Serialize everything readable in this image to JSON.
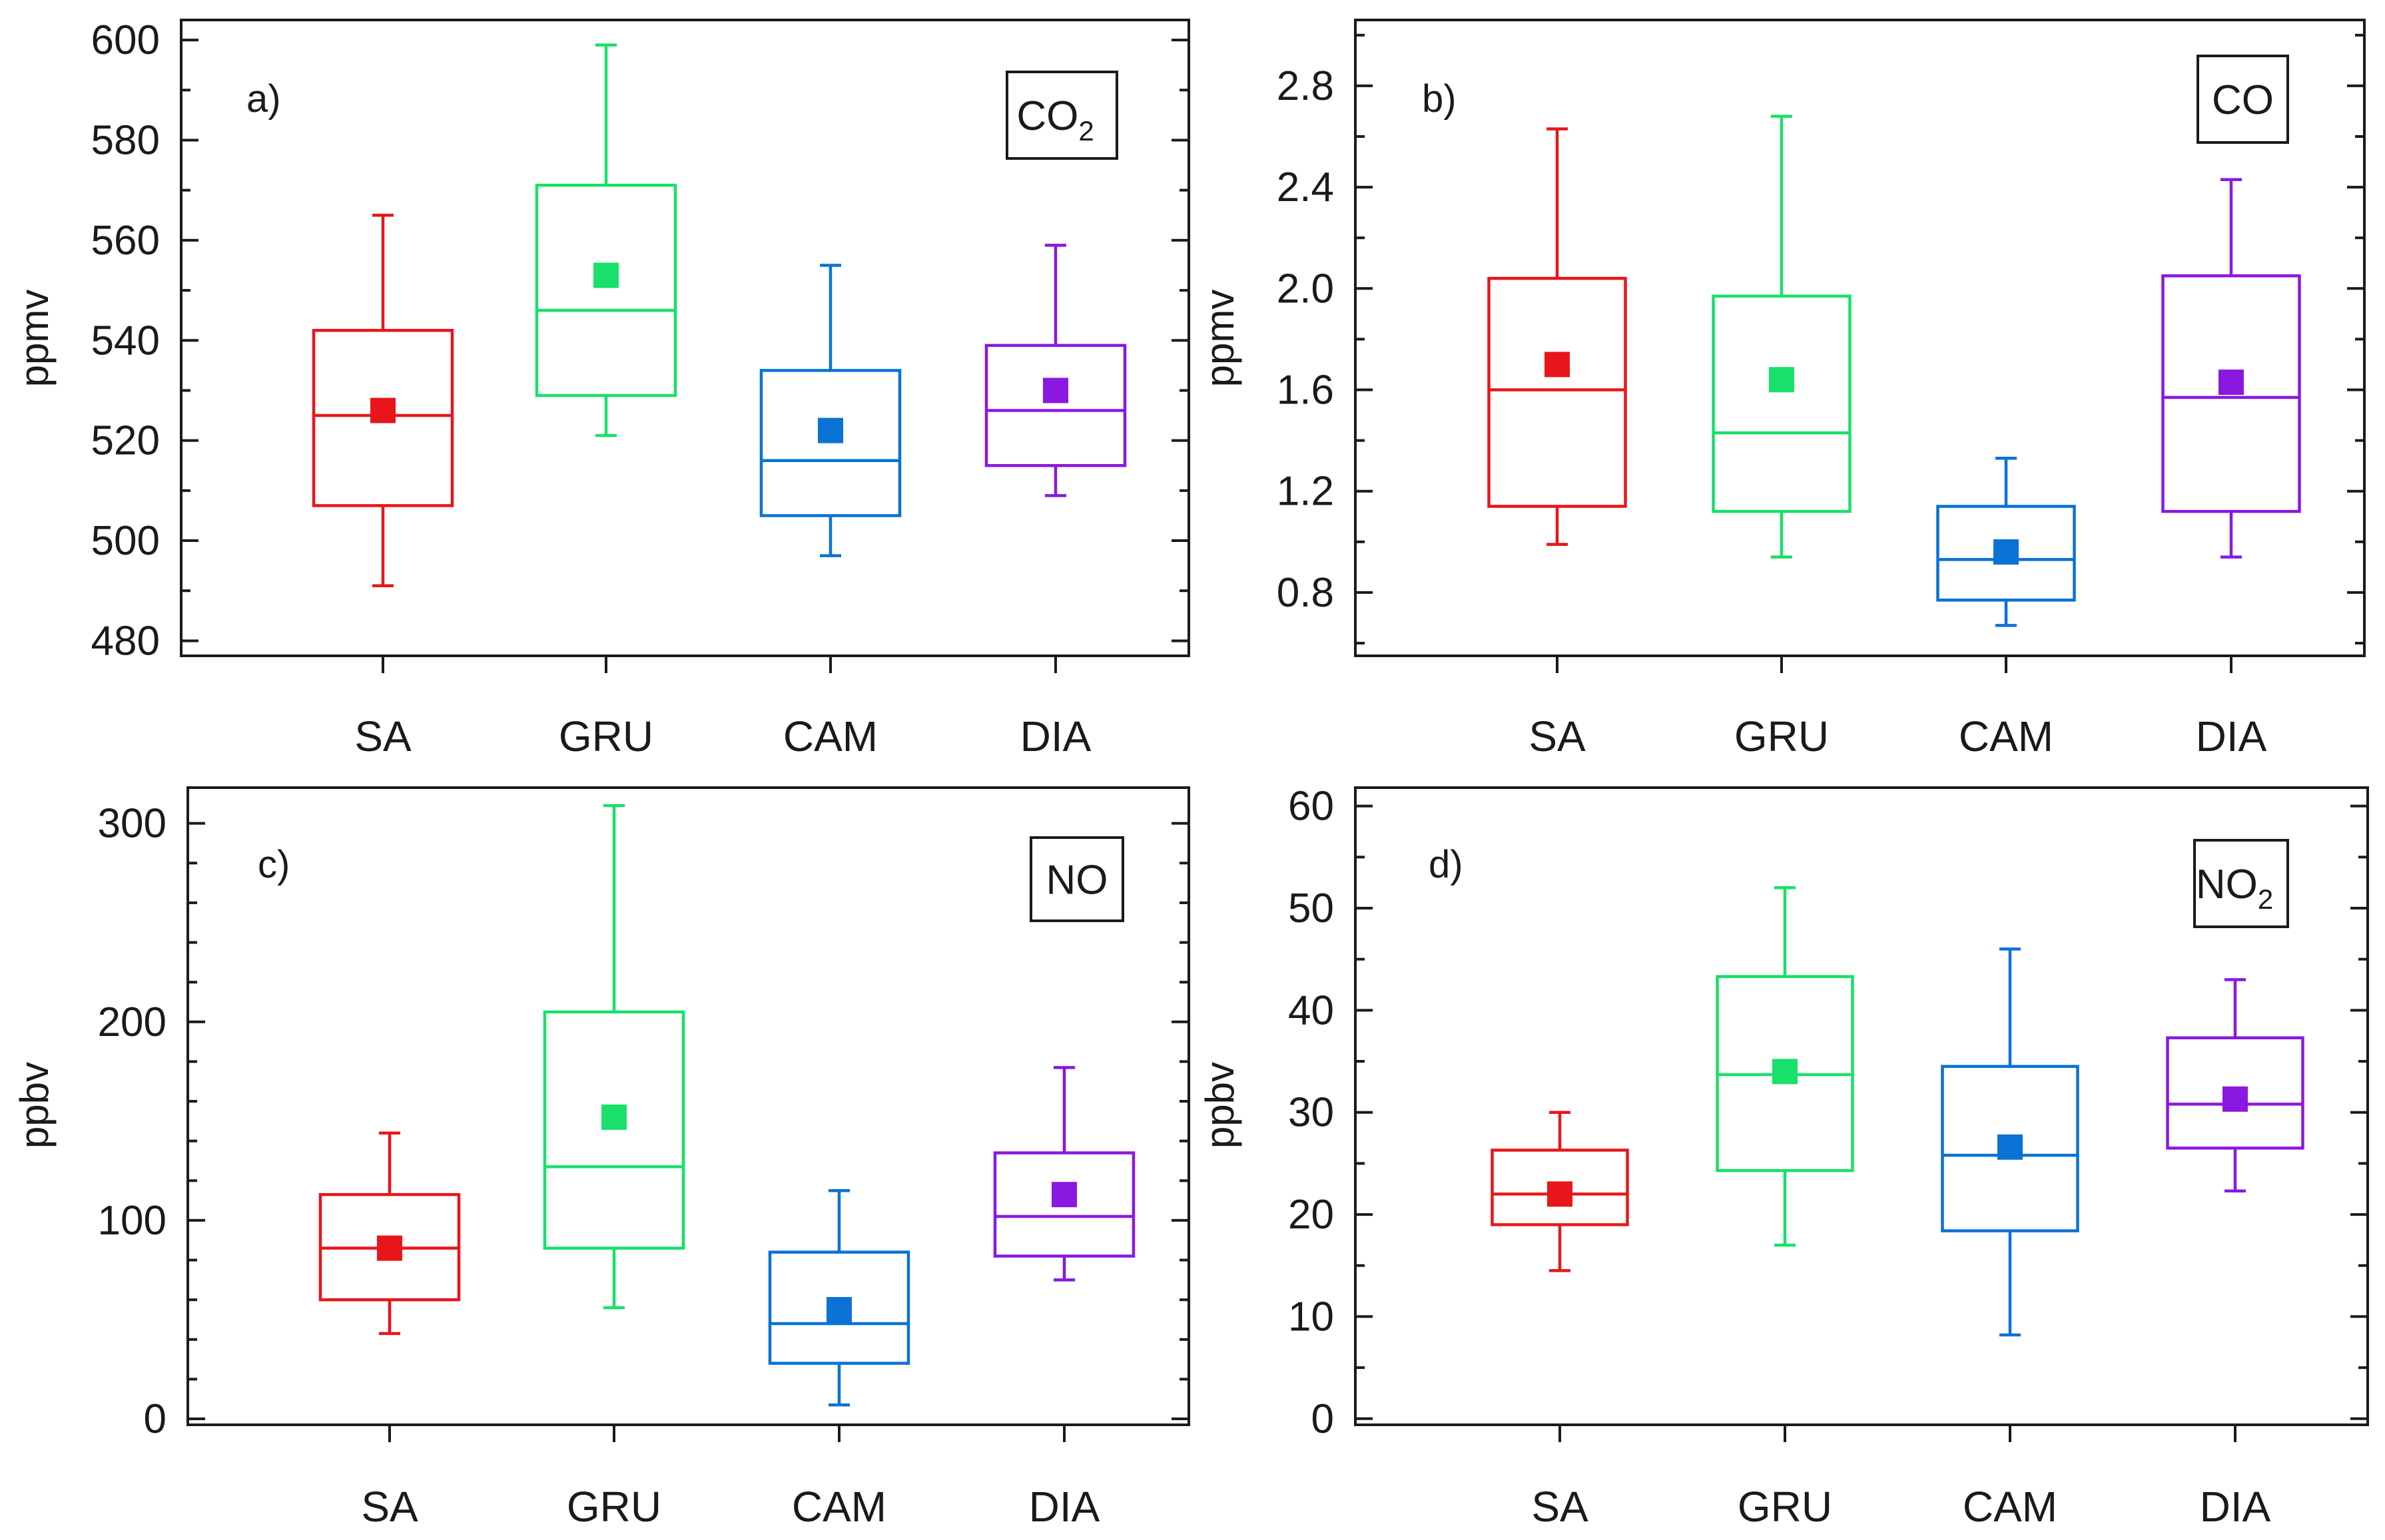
{
  "colors": {
    "SA": "#e8161b",
    "GRU": "#18e06a",
    "CAM": "#0a72d4",
    "DIA": "#8a18e0"
  },
  "chart_data": [
    {
      "type": "box",
      "panel_label": "a)",
      "species": "CO",
      "species_subscript": "2",
      "ylabel": "ppmv",
      "categories": [
        "SA",
        "GRU",
        "CAM",
        "DIA"
      ],
      "ylim": [
        477,
        604
      ],
      "yticks": [
        480,
        500,
        520,
        540,
        560,
        580,
        600
      ],
      "yminor_step": 10,
      "tick_labels": [
        "480",
        "500",
        "520",
        "540",
        "560",
        "580",
        "600"
      ],
      "boxes": [
        {
          "category": "SA",
          "whisker_low": 491,
          "q1": 507,
          "median": 525,
          "q3": 542,
          "whisker_high": 565,
          "mean": 526
        },
        {
          "category": "GRU",
          "whisker_low": 521,
          "q1": 529,
          "median": 546,
          "q3": 571,
          "whisker_high": 599,
          "mean": 553
        },
        {
          "category": "CAM",
          "whisker_low": 497,
          "q1": 505,
          "median": 516,
          "q3": 534,
          "whisker_high": 555,
          "mean": 522
        },
        {
          "category": "DIA",
          "whisker_low": 509,
          "q1": 515,
          "median": 526,
          "q3": 539,
          "whisker_high": 559,
          "mean": 530
        }
      ]
    },
    {
      "type": "box",
      "panel_label": "b)",
      "species": "CO",
      "species_subscript": "",
      "ylabel": "ppmv",
      "categories": [
        "SA",
        "GRU",
        "CAM",
        "DIA"
      ],
      "ylim": [
        0.55,
        3.06
      ],
      "yticks": [
        0.8,
        1.2,
        1.6,
        2.0,
        2.4,
        2.8
      ],
      "yminor_step": 0.2,
      "tick_labels": [
        "0.8",
        "1.2",
        "1.6",
        "2.0",
        "2.4",
        "2.8"
      ],
      "boxes": [
        {
          "category": "SA",
          "whisker_low": 0.99,
          "q1": 1.14,
          "median": 1.6,
          "q3": 2.04,
          "whisker_high": 2.63,
          "mean": 1.7
        },
        {
          "category": "GRU",
          "whisker_low": 0.94,
          "q1": 1.12,
          "median": 1.43,
          "q3": 1.97,
          "whisker_high": 2.68,
          "mean": 1.64
        },
        {
          "category": "CAM",
          "whisker_low": 0.67,
          "q1": 0.77,
          "median": 0.93,
          "q3": 1.14,
          "whisker_high": 1.33,
          "mean": 0.96
        },
        {
          "category": "DIA",
          "whisker_low": 0.94,
          "q1": 1.12,
          "median": 1.57,
          "q3": 2.05,
          "whisker_high": 2.43,
          "mean": 1.63
        }
      ]
    },
    {
      "type": "box",
      "panel_label": "c)",
      "species": "NO",
      "species_subscript": "",
      "ylabel": "ppbv",
      "categories": [
        "SA",
        "GRU",
        "CAM",
        "DIA"
      ],
      "ylim": [
        -3,
        318
      ],
      "yticks": [
        0,
        100,
        200,
        300
      ],
      "yminor_step": 20,
      "tick_labels": [
        "0",
        "100",
        "200",
        "300"
      ],
      "boxes": [
        {
          "category": "SA",
          "whisker_low": 43,
          "q1": 60,
          "median": 86,
          "q3": 113,
          "whisker_high": 144,
          "mean": 86
        },
        {
          "category": "GRU",
          "whisker_low": 56,
          "q1": 86,
          "median": 127,
          "q3": 205,
          "whisker_high": 309,
          "mean": 152
        },
        {
          "category": "CAM",
          "whisker_low": 7,
          "q1": 28,
          "median": 48,
          "q3": 84,
          "whisker_high": 115,
          "mean": 55
        },
        {
          "category": "DIA",
          "whisker_low": 70,
          "q1": 82,
          "median": 102,
          "q3": 134,
          "whisker_high": 177,
          "mean": 113
        }
      ]
    },
    {
      "type": "box",
      "panel_label": "d)",
      "species": "NO",
      "species_subscript": "2",
      "ylabel": "ppbv",
      "categories": [
        "SA",
        "GRU",
        "CAM",
        "DIA"
      ],
      "ylim": [
        -0.6,
        61.8
      ],
      "yticks": [
        0,
        10,
        20,
        30,
        40,
        50,
        60
      ],
      "yminor_step": 5,
      "tick_labels": [
        "0",
        "10",
        "20",
        "30",
        "40",
        "50",
        "60"
      ],
      "boxes": [
        {
          "category": "SA",
          "whisker_low": 14.5,
          "q1": 19,
          "median": 22,
          "q3": 26.3,
          "whisker_high": 30,
          "mean": 22
        },
        {
          "category": "GRU",
          "whisker_low": 17,
          "q1": 24.3,
          "median": 33.7,
          "q3": 43.3,
          "whisker_high": 52,
          "mean": 34
        },
        {
          "category": "CAM",
          "whisker_low": 8.2,
          "q1": 18.4,
          "median": 25.8,
          "q3": 34.5,
          "whisker_high": 46,
          "mean": 26.6
        },
        {
          "category": "DIA",
          "whisker_low": 22.3,
          "q1": 26.5,
          "median": 30.8,
          "q3": 37.3,
          "whisker_high": 43,
          "mean": 31.3
        }
      ]
    }
  ]
}
